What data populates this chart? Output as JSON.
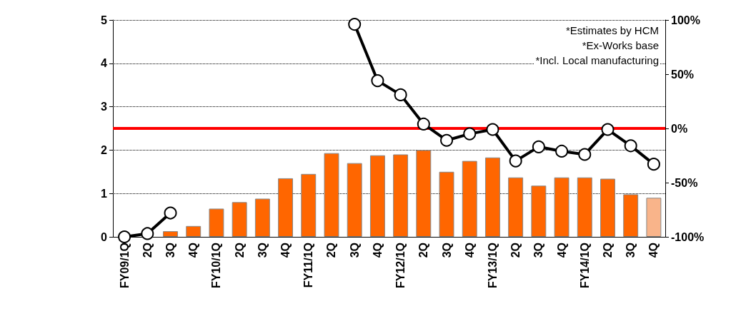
{
  "chart_data": {
    "type": "bar",
    "categories": [
      "FY09/1Q",
      "2Q",
      "3Q",
      "4Q",
      "FY10/1Q",
      "2Q",
      "3Q",
      "4Q",
      "FY11/1Q",
      "2Q",
      "3Q",
      "4Q",
      "FY12/1Q",
      "2Q",
      "3Q",
      "4Q",
      "FY13/1Q",
      "2Q",
      "3Q",
      "4Q",
      "FY14/1Q",
      "2Q",
      "3Q",
      "4Q"
    ],
    "series": [
      {
        "colors": [
          "#ff6600",
          "#ff6600",
          "#ff6600",
          "#ff6600",
          "#ff6600",
          "#ff6600",
          "#ff6600",
          "#ff6600",
          "#ff6600",
          "#ff6600",
          "#ff6600",
          "#ff6600",
          "#ff6600",
          "#ff6600",
          "#ff6600",
          "#ff6600",
          "#ff6600",
          "#ff6600",
          "#ff6600",
          "#ff6600",
          "#ff6600",
          "#ff6600",
          "#ff6600",
          "#f9b48a"
        ],
        "values": [
          null,
          null,
          0.13,
          0.25,
          0.65,
          0.8,
          0.88,
          1.35,
          1.45,
          1.93,
          1.7,
          1.88,
          1.9,
          2.0,
          1.5,
          1.75,
          1.83,
          1.37,
          1.18,
          1.37,
          1.37,
          1.34,
          0.98,
          0.9
        ]
      },
      {
        "type": "line",
        "axis": "y2",
        "color": "#000000",
        "values": [
          -100,
          -97,
          -78,
          null,
          null,
          null,
          null,
          null,
          null,
          null,
          96,
          44,
          31,
          4,
          -11,
          -5,
          -1,
          -30,
          -17,
          -21,
          -24,
          -1,
          -16,
          -33
        ]
      }
    ],
    "ylim": [
      0,
      5
    ],
    "yticks": [
      0,
      1,
      2,
      3,
      4,
      5
    ],
    "y2lim": [
      -100,
      100
    ],
    "y2ticks": [
      {
        "value": -100,
        "label": "-100%"
      },
      {
        "value": -50,
        "label": "-50%"
      },
      {
        "value": 0,
        "label": "0%"
      },
      {
        "value": 50,
        "label": "50%"
      },
      {
        "value": 100,
        "label": "100%"
      }
    ],
    "ref_lines": [
      {
        "axis": "y2",
        "value": 0,
        "color": "#ff0000"
      }
    ],
    "annotations": [
      "*Estimates by HCM",
      "*Ex-Works base",
      "*Incl. Local manufacturing"
    ],
    "grid": "y",
    "marker": "circle",
    "line_style": "solid"
  }
}
